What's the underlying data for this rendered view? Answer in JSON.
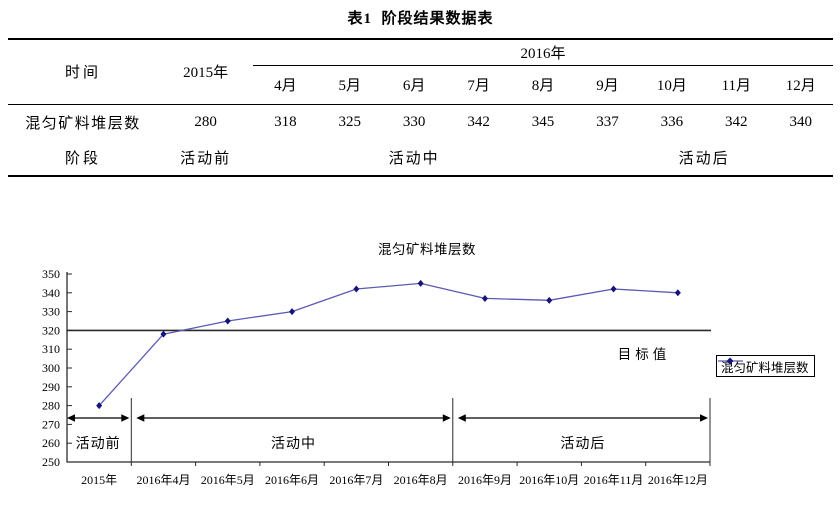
{
  "table": {
    "title": "表1  阶段结果数据表",
    "header": {
      "time": "时间",
      "year_2015": "2015年",
      "year_2016": "2016年",
      "months": [
        "4月",
        "5月",
        "6月",
        "7月",
        "8月",
        "9月",
        "10月",
        "11月",
        "12月"
      ]
    },
    "layers_row": {
      "label": "混匀矿料堆层数",
      "y2015": "280",
      "y2016": [
        "318",
        "325",
        "330",
        "342",
        "345",
        "337",
        "336",
        "342",
        "340"
      ]
    },
    "stage_row": {
      "label": "阶段",
      "before": "活动前",
      "during": "活动中",
      "after": "活动后"
    }
  },
  "chart_data": {
    "type": "line",
    "title": "混匀矿料堆层数",
    "categories": [
      "2015年",
      "2016年4月",
      "2016年5月",
      "2016年6月",
      "2016年7月",
      "2016年8月",
      "2016年9月",
      "2016年10月",
      "2016年11月",
      "2016年12月"
    ],
    "series": [
      {
        "name": "混匀矿料堆层数",
        "values": [
          280,
          318,
          325,
          330,
          342,
          345,
          337,
          336,
          342,
          340
        ],
        "line_color": "#5a5ab4",
        "marker_color": "#14147a",
        "marker": "diamond"
      }
    ],
    "ylim": [
      250,
      350
    ],
    "ytick_step": 10,
    "grid": false,
    "axis_color": "#2b2b2b",
    "legend": {
      "position": "right",
      "label": "混匀矿料堆层数"
    },
    "target_line": {
      "value": 320,
      "label": "目标值",
      "color": "#2b2b2b"
    },
    "phases": [
      {
        "label": "活动前",
        "from": 0,
        "to": 0
      },
      {
        "label": "活动中",
        "from": 1,
        "to": 5
      },
      {
        "label": "活动后",
        "from": 6,
        "to": 9
      }
    ]
  }
}
